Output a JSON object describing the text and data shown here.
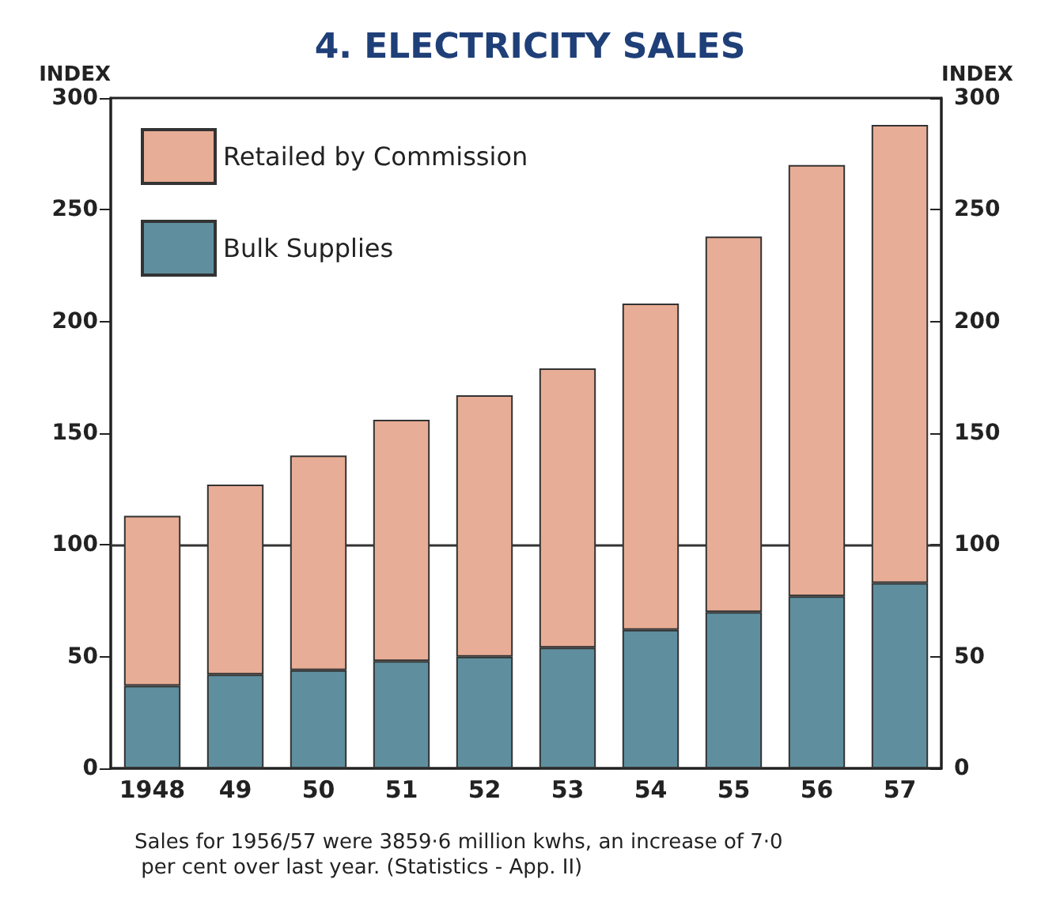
{
  "chart_data": {
    "type": "bar",
    "title": "4. ELECTRICITY SALES",
    "ylabel": "INDEX",
    "y2label": "INDEX",
    "categories": [
      "1948",
      "49",
      "50",
      "51",
      "52",
      "53",
      "54",
      "55",
      "56",
      "57"
    ],
    "stacked": true,
    "series": [
      {
        "name": "Bulk Supplies",
        "color": "#5f8f9e",
        "values": [
          37,
          42,
          44,
          48,
          50,
          54,
          62,
          70,
          77,
          83
        ]
      },
      {
        "name": "Retailed by Commission",
        "color": "#e8ad96",
        "values": [
          76,
          85,
          96,
          108,
          117,
          125,
          146,
          168,
          193,
          205
        ]
      }
    ],
    "ylim": [
      0,
      300
    ],
    "yticks": [
      0,
      50,
      100,
      150,
      200,
      250,
      300
    ],
    "y2lim": [
      0,
      300
    ],
    "y2ticks": [
      0,
      50,
      100,
      150,
      200,
      250,
      300
    ],
    "ref_lines": [
      {
        "axis": "y",
        "value": 100,
        "color": "#333333"
      }
    ],
    "grid": false,
    "legend": "top left",
    "annotations": [
      "Sales for 1956/57 were 3859·6 million kwhs, an increase of 7·0 per cent over last year. (Statistics - App. II)"
    ]
  }
}
